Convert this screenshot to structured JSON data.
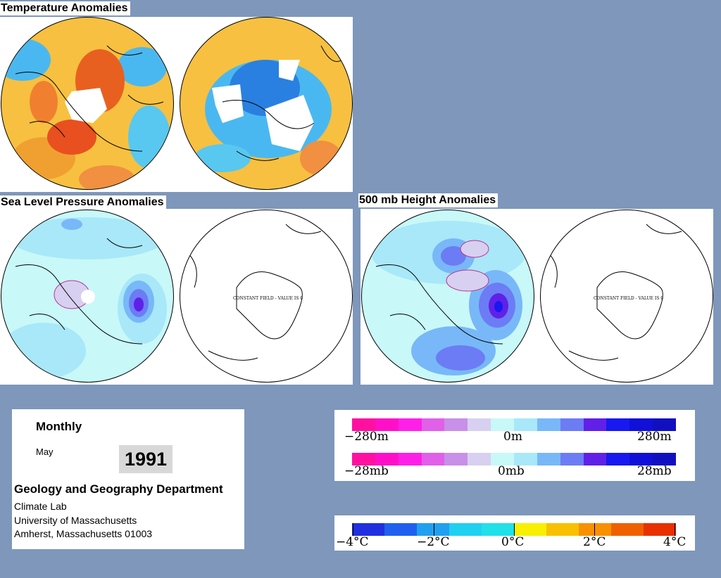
{
  "titles": {
    "temperature": "Temperature Anomalies",
    "slp": "Sea Level Pressure Anomalies",
    "height500": "500 mb Height Anomalies"
  },
  "maps": {
    "constant_field_label": "CONSTANT FIELD - VALUE IS 0"
  },
  "info": {
    "period": "Monthly",
    "month": "May",
    "year": "1991",
    "department": "Geology and Geography Department",
    "lines": [
      "Climate Lab",
      "University of Massachusetts",
      "Amherst, Massachusetts 01003"
    ]
  },
  "legends": {
    "height": {
      "labels": [
        "−280m",
        "0m",
        "280m"
      ]
    },
    "pressure": {
      "labels": [
        "−28mb",
        "0mb",
        "28mb"
      ]
    },
    "temperature": {
      "labels": [
        "−4°C",
        "−2°C",
        "0°C",
        "2°C",
        "4°C"
      ]
    }
  },
  "colors": {
    "background": "#7e97bb",
    "anomaly_scale": [
      "#ff10a0",
      "#ff10c8",
      "#ff20e8",
      "#e060e8",
      "#c890e8",
      "#d8d0f0",
      "#c8f8f8",
      "#a8e8f8",
      "#78b8f8",
      "#6c7cf4",
      "#6020e8",
      "#1818f0",
      "#1010d8",
      "#1010c0"
    ],
    "temperature_scale": [
      "#2030e0",
      "#2060f0",
      "#20a0f0",
      "#20d0f0",
      "#20e0e8",
      "#f8f000",
      "#f8c000",
      "#f89000",
      "#f06000",
      "#e83000"
    ]
  }
}
